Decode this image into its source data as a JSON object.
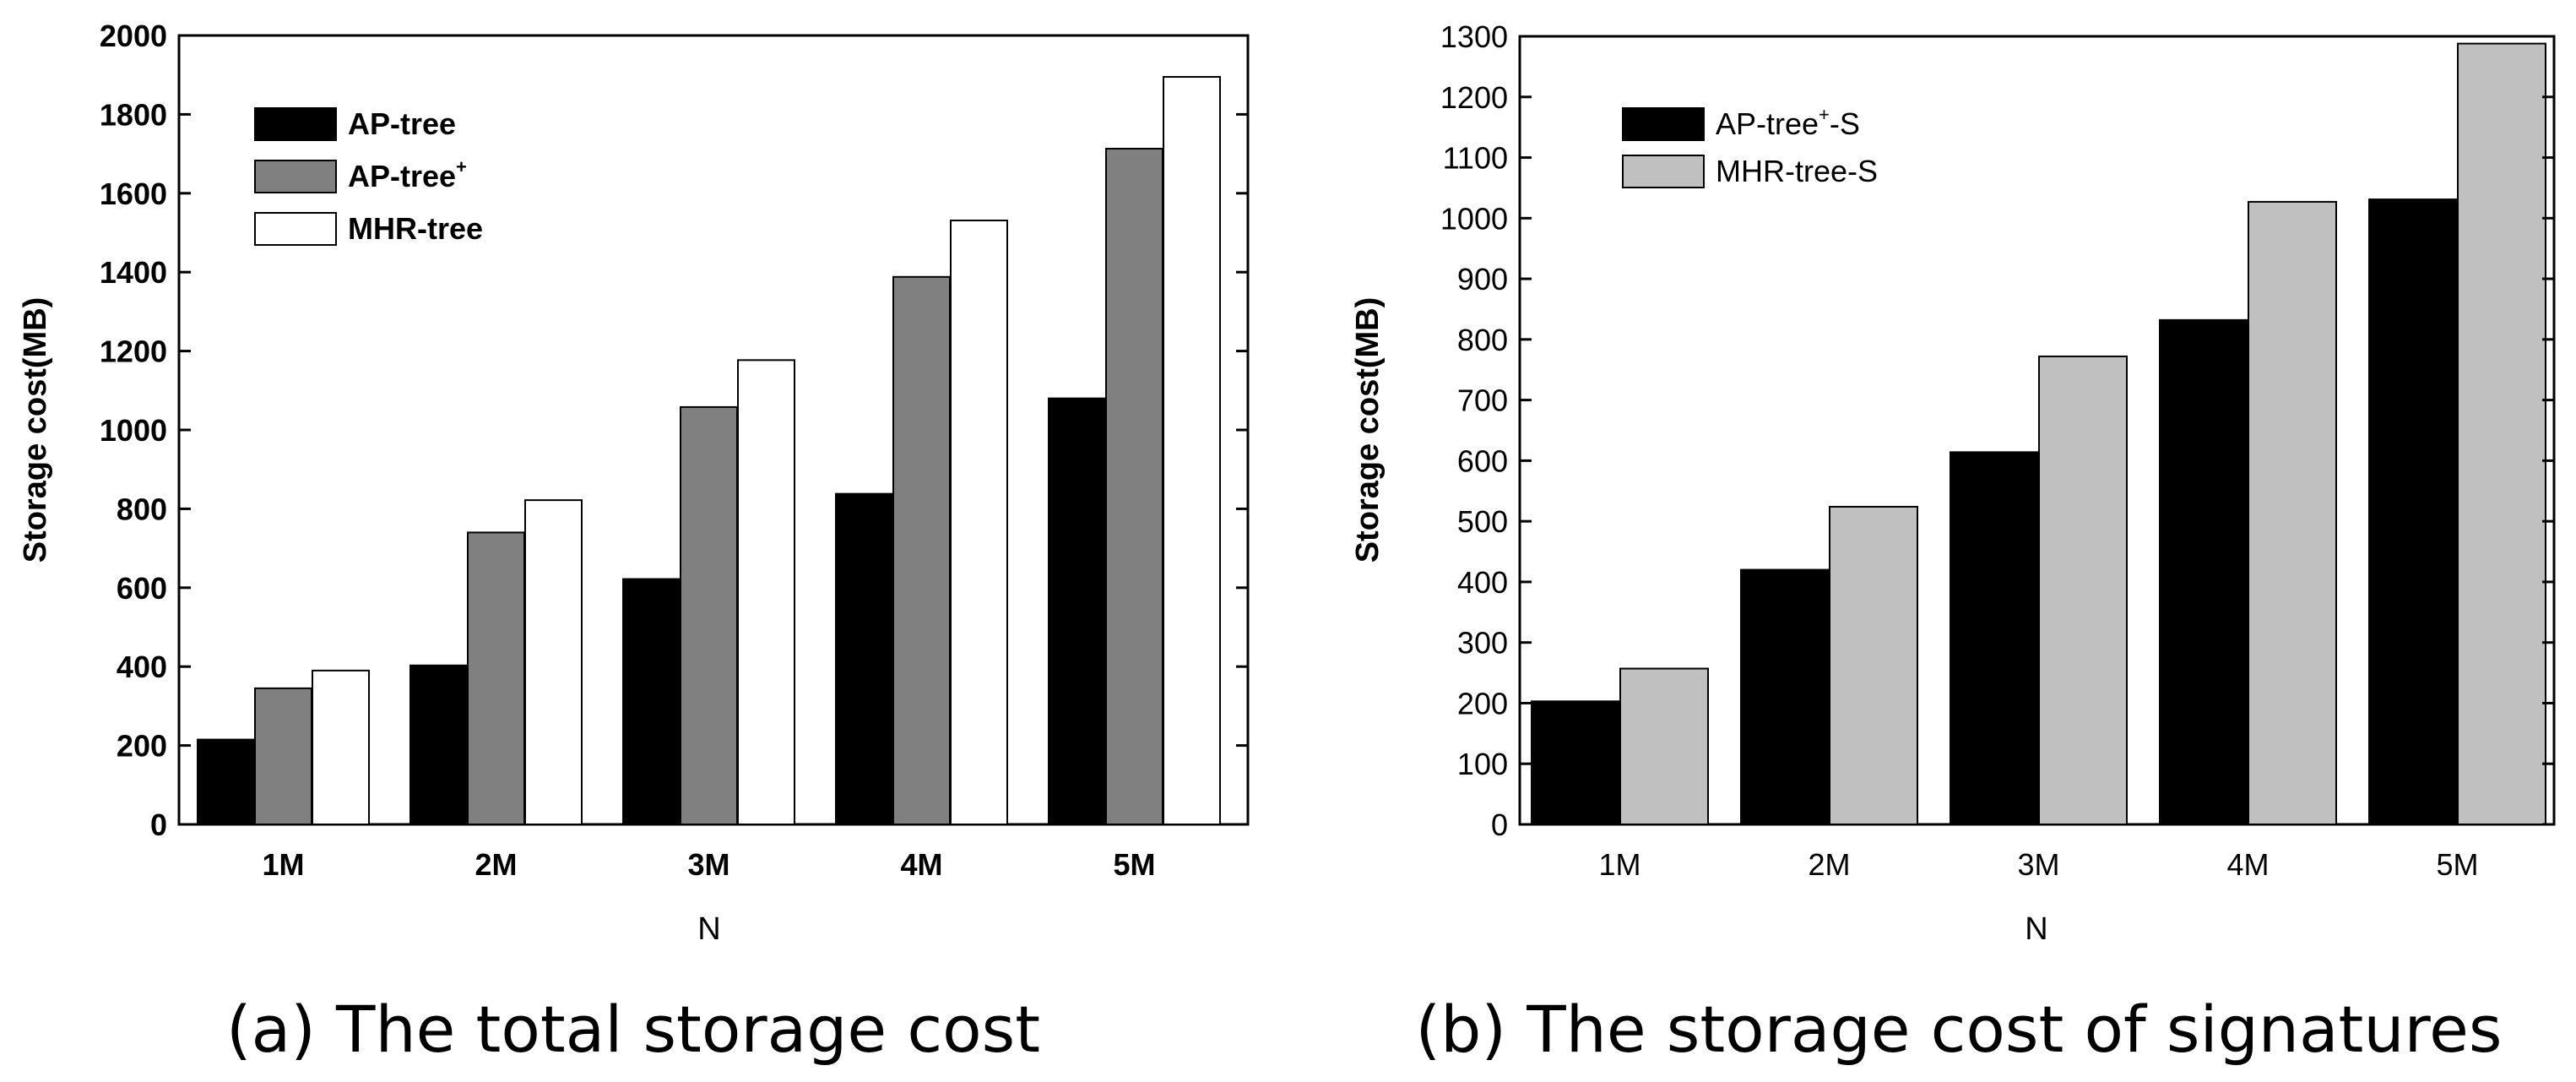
{
  "chart_data": [
    {
      "type": "bar",
      "caption": "(a) The total storage cost",
      "xlabel": "N",
      "ylabel": "Storage cost(MB)",
      "categories": [
        "1M",
        "2M",
        "3M",
        "4M",
        "5M"
      ],
      "ylim": [
        0,
        2000
      ],
      "yticks": [
        0,
        200,
        400,
        600,
        800,
        1000,
        1200,
        1400,
        1600,
        1800,
        2000
      ],
      "legend_position": "top-left",
      "series": [
        {
          "name": "AP-tree",
          "name_sup": "",
          "color": "#000000",
          "values": [
            215,
            403,
            622,
            838,
            1080
          ]
        },
        {
          "name": "AP-tree",
          "name_sup": "+",
          "color": "#808080",
          "values": [
            345,
            740,
            1058,
            1388,
            1713
          ]
        },
        {
          "name": "MHR-tree",
          "name_sup": "",
          "color": "#ffffff",
          "values": [
            390,
            822,
            1177,
            1531,
            1895
          ]
        }
      ]
    },
    {
      "type": "bar",
      "caption": "(b) The storage cost of signatures",
      "xlabel": "N",
      "ylabel": "Storage cost(MB)",
      "categories": [
        "1M",
        "2M",
        "3M",
        "4M",
        "5M"
      ],
      "ylim": [
        0,
        1300
      ],
      "yticks": [
        0,
        100,
        200,
        300,
        400,
        500,
        600,
        700,
        800,
        900,
        1000,
        1100,
        1200,
        1300
      ],
      "legend_position": "top-left",
      "series": [
        {
          "name": "AP-tree",
          "name_sup": "+",
          "name_suffix": "-S",
          "color": "#000000",
          "values": [
            203,
            420,
            614,
            832,
            1031
          ]
        },
        {
          "name": "MHR-tree-S",
          "name_sup": "",
          "name_suffix": "",
          "color": "#c0c0c0",
          "values": [
            257,
            524,
            772,
            1027,
            1288
          ]
        }
      ]
    }
  ]
}
